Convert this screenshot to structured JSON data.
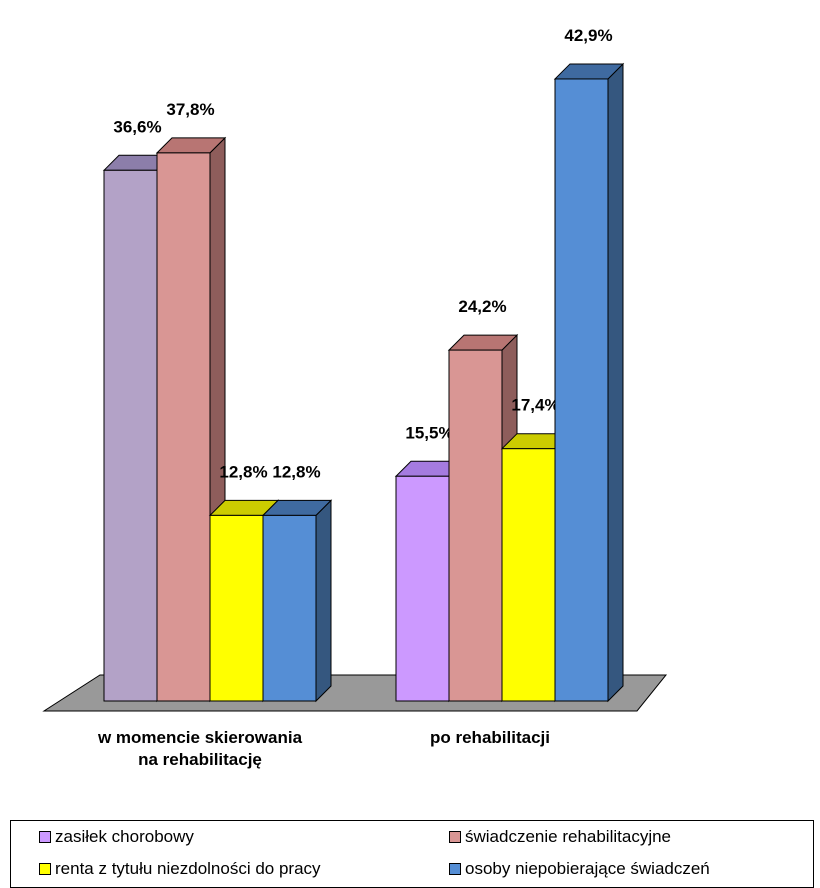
{
  "chart_data": {
    "type": "bar",
    "categories": [
      "w momencie skierowania na rehabilitację",
      "po rehabilitacji"
    ],
    "category_lines": [
      [
        "w momencie skierowania",
        "na rehabilitację"
      ],
      [
        "po rehabilitacji"
      ]
    ],
    "series": [
      {
        "name": "zasiłek chorobowy",
        "values": [
          36.6,
          15.5
        ],
        "labels": [
          "36,6%",
          "15,5%"
        ],
        "colors": [
          "#b3a2c7",
          "#cc99ff"
        ],
        "side_colors": [
          "#7f7393",
          "#9370c7"
        ],
        "top_colors": [
          "#8c7eaa",
          "#a57be0"
        ]
      },
      {
        "name": "świadczenie rehabilitacyjne",
        "values": [
          37.8,
          24.2
        ],
        "labels": [
          "37,8%",
          "24,2%"
        ],
        "colors": [
          "#d99694",
          "#d99694"
        ],
        "side_colors": [
          "#8e5d5b",
          "#8e5d5b"
        ],
        "top_colors": [
          "#b87573",
          "#b87573"
        ]
      },
      {
        "name": "renta z tytułu niezdolności do pracy",
        "values": [
          12.8,
          17.4
        ],
        "labels": [
          "12,8%",
          "17,4%"
        ],
        "colors": [
          "#ffff00",
          "#ffff00"
        ],
        "side_colors": [
          "#a6a600",
          "#a6a600"
        ],
        "top_colors": [
          "#cccc00",
          "#cccc00"
        ]
      },
      {
        "name": "osoby niepobierające świadczeń",
        "values": [
          12.8,
          42.9
        ],
        "labels": [
          "12,8%",
          "42,9%"
        ],
        "colors": [
          "#558ed5",
          "#558ed5"
        ],
        "side_colors": [
          "#35577f",
          "#35577f"
        ],
        "top_colors": [
          "#3f6aa0",
          "#3f6aa0"
        ]
      }
    ],
    "legend_colors": [
      "#cc99ff",
      "#d99694",
      "#ffff00",
      "#558ed5"
    ],
    "floor_color": "#999999",
    "grid": false,
    "legend_position": "bottom"
  }
}
